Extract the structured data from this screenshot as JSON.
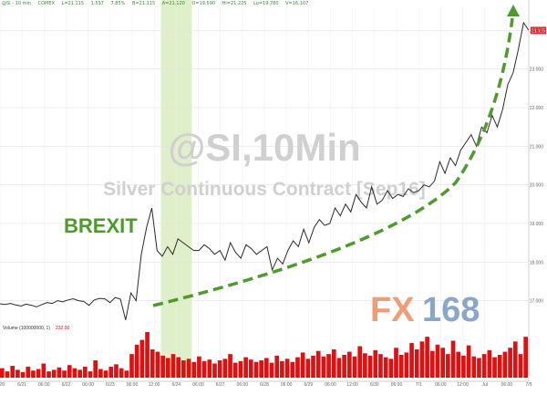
{
  "header": {
    "symbol": "@SI - 10 min",
    "exchange": "COMEX",
    "last": "L=21.115",
    "change": "1.537",
    "pct": "7.85%",
    "bid": "B=21.115",
    "ask": "A=21.120",
    "open": "O=19.590",
    "high": "Hi=21.225",
    "low": "Lo=19.780",
    "volume": "V=16,107"
  },
  "watermark": {
    "title": "@SI,10Min",
    "subtitle": "Silver Continuous Contract [Sep16]"
  },
  "annotation": {
    "brexit": "BREXIT"
  },
  "logo": {
    "fx": "FX",
    "num": "168"
  },
  "colors": {
    "price": "#2a2a2a",
    "volume": "#dd1111",
    "highlight": "#d8ecc0",
    "arrow": "#4f9a2c",
    "watermark": "#d0d0d0",
    "last_tag": "#e03030"
  },
  "chart_data": [
    {
      "type": "line",
      "title": "@SI,10Min",
      "subtitle": "Silver Continuous Contract [Sep16]",
      "x_ticks": [
        "6/20",
        "6/21",
        "06:00",
        "6/22",
        "06:00",
        "6/23",
        "06:00",
        "12:00",
        "6/24",
        "06:00",
        "6/27",
        "06:00",
        "6/28",
        "06:00",
        "6/29",
        "06:00",
        "12:00",
        "6/30",
        "06:00",
        "7/1",
        "06:00",
        "12:00",
        "Jul",
        "06:00",
        "7/5"
      ],
      "y_ticks": [
        "17.000",
        "18.000",
        "19.000",
        "20.000",
        "21.000",
        "22.000",
        "23.000",
        "24.000"
      ],
      "ylim": [
        16.4,
        24.6
      ],
      "last_label": "21.115",
      "highlight_range": [
        7.3,
        8.7
      ],
      "series": [
        {
          "values": [
            16.92,
            16.9,
            16.93,
            16.89,
            16.86,
            16.91,
            16.88,
            16.84,
            16.9,
            16.95,
            16.93,
            17.0,
            16.97,
            17.02,
            17.05,
            17.0,
            16.98,
            16.88,
            17.02,
            17.06,
            17.05,
            16.95,
            17.08,
            17.04,
            16.5,
            17.2,
            17.0,
            18.2,
            18.9,
            19.4,
            18.3,
            18.15,
            18.4,
            18.2,
            18.6,
            18.5,
            18.4,
            18.3,
            18.3,
            18.45,
            18.35,
            18.2,
            18.3,
            18.05,
            18.5,
            18.25,
            18.1,
            18.45,
            18.35,
            18.2,
            18.3,
            18.4,
            17.8,
            18.1,
            17.95,
            18.3,
            18.55,
            18.4,
            18.85,
            18.5,
            18.9,
            19.1,
            18.95,
            19.0,
            19.4,
            19.2,
            19.5,
            19.3,
            19.75,
            19.55,
            19.4,
            19.95,
            19.5,
            19.6,
            19.85,
            19.65,
            19.75,
            19.7,
            19.9,
            19.8,
            19.85,
            20.0,
            19.95,
            20.1,
            20.6,
            20.3,
            20.7,
            20.5,
            20.9,
            21.1,
            21.3,
            21.0,
            21.5,
            21.35,
            21.8,
            21.5,
            21.95,
            22.6,
            22.9,
            23.5,
            24.2,
            24.0
          ]
        }
      ]
    },
    {
      "type": "bar",
      "title": "Volume (100000000, 1)",
      "last_label": "232.00",
      "series": [
        {
          "values": [
            12,
            8,
            15,
            10,
            7,
            14,
            9,
            11,
            18,
            8,
            10,
            13,
            9,
            16,
            12,
            10,
            14,
            8,
            22,
            11,
            9,
            14,
            17,
            12,
            9,
            30,
            42,
            48,
            58,
            36,
            33,
            28,
            25,
            30,
            26,
            22,
            24,
            20,
            27,
            21,
            23,
            18,
            22,
            24,
            30,
            19,
            21,
            26,
            23,
            20,
            22,
            25,
            19,
            28,
            21,
            24,
            20,
            26,
            32,
            24,
            28,
            34,
            27,
            30,
            36,
            25,
            29,
            33,
            27,
            40,
            31,
            28,
            35,
            30,
            26,
            24,
            38,
            29,
            32,
            44,
            36,
            46,
            52,
            34,
            42,
            38,
            30,
            47,
            33,
            28,
            41,
            27,
            25,
            30,
            35,
            26,
            29,
            33,
            38,
            46,
            30,
            52
          ]
        }
      ]
    }
  ]
}
